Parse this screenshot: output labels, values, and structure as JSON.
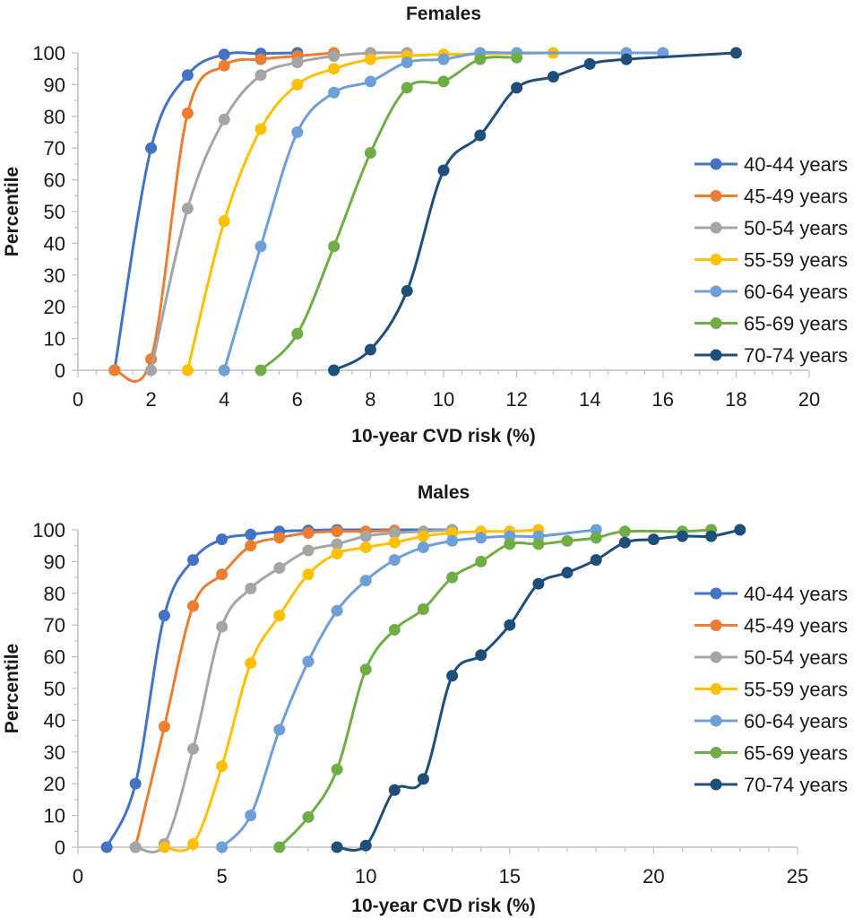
{
  "chart_data": [
    {
      "type": "line",
      "title": "Females",
      "xlabel": "10-year CVD risk (%)",
      "ylabel": "Percentile",
      "xlim": [
        0,
        20
      ],
      "ylim": [
        0,
        100
      ],
      "xticks": [
        0,
        2,
        4,
        6,
        8,
        10,
        12,
        14,
        16,
        18,
        20
      ],
      "yticks": [
        0,
        10,
        20,
        30,
        40,
        50,
        60,
        70,
        80,
        90,
        100
      ],
      "grid": false,
      "legend_position": "right",
      "series": [
        {
          "name": "40-44 years",
          "color": "#4472c4",
          "points": [
            [
              1,
              0
            ],
            [
              2,
              70
            ],
            [
              3,
              93
            ],
            [
              4,
              99.5
            ],
            [
              5,
              99.8
            ],
            [
              6,
              100
            ]
          ]
        },
        {
          "name": "45-49 years",
          "color": "#ed7d31",
          "points": [
            [
              1,
              0
            ],
            [
              2,
              3.5
            ],
            [
              3,
              81
            ],
            [
              4,
              96
            ],
            [
              5,
              98
            ],
            [
              6,
              99
            ],
            [
              7,
              100
            ]
          ]
        },
        {
          "name": "50-54 years",
          "color": "#a5a5a5",
          "points": [
            [
              2,
              0
            ],
            [
              3,
              51
            ],
            [
              4,
              79
            ],
            [
              5,
              93
            ],
            [
              6,
              97
            ],
            [
              7,
              99
            ],
            [
              8,
              100
            ],
            [
              9,
              100
            ]
          ]
        },
        {
          "name": "55-59 years",
          "color": "#ffc000",
          "points": [
            [
              3,
              0
            ],
            [
              4,
              47
            ],
            [
              5,
              76
            ],
            [
              6,
              90
            ],
            [
              7,
              95
            ],
            [
              8,
              98
            ],
            [
              9,
              99
            ],
            [
              10,
              99.5
            ],
            [
              13,
              100
            ]
          ]
        },
        {
          "name": "60-64 years",
          "color": "#6f9fd8",
          "points": [
            [
              4,
              0
            ],
            [
              5,
              39
            ],
            [
              6,
              75
            ],
            [
              7,
              87.5
            ],
            [
              8,
              91
            ],
            [
              9,
              97
            ],
            [
              10,
              98
            ],
            [
              11,
              100
            ],
            [
              12,
              100
            ],
            [
              15,
              100
            ],
            [
              16,
              100
            ]
          ]
        },
        {
          "name": "65-69 years",
          "color": "#70ad47",
          "points": [
            [
              5,
              0
            ],
            [
              6,
              11.5
            ],
            [
              7,
              39
            ],
            [
              8,
              68.5
            ],
            [
              9,
              89
            ],
            [
              10,
              91
            ],
            [
              11,
              98
            ],
            [
              12,
              98.5
            ]
          ]
        },
        {
          "name": "70-74 years",
          "color": "#1f4e79",
          "points": [
            [
              7,
              0
            ],
            [
              8,
              6.5
            ],
            [
              9,
              25
            ],
            [
              10,
              63
            ],
            [
              11,
              74
            ],
            [
              12,
              89
            ],
            [
              13,
              92.5
            ],
            [
              14,
              96.5
            ],
            [
              15,
              98
            ],
            [
              18,
              100
            ]
          ]
        }
      ]
    },
    {
      "type": "line",
      "title": "Males",
      "xlabel": "10-year CVD risk (%)",
      "ylabel": "Percentile",
      "xlim": [
        0,
        25
      ],
      "ylim": [
        0,
        100
      ],
      "xticks": [
        0,
        5,
        10,
        15,
        20,
        25
      ],
      "yticks": [
        0,
        10,
        20,
        30,
        40,
        50,
        60,
        70,
        80,
        90,
        100
      ],
      "grid": false,
      "legend_position": "right",
      "series": [
        {
          "name": "40-44 years",
          "color": "#4472c4",
          "points": [
            [
              1,
              0
            ],
            [
              2,
              20
            ],
            [
              3,
              73
            ],
            [
              4,
              90.5
            ],
            [
              5,
              97
            ],
            [
              6,
              98.5
            ],
            [
              7,
              99.5
            ],
            [
              8,
              99.8
            ],
            [
              9,
              100
            ],
            [
              13,
              100
            ]
          ]
        },
        {
          "name": "45-49 years",
          "color": "#ed7d31",
          "points": [
            [
              2,
              0
            ],
            [
              3,
              38
            ],
            [
              4,
              76
            ],
            [
              5,
              86
            ],
            [
              6,
              95
            ],
            [
              7,
              97.5
            ],
            [
              8,
              99
            ],
            [
              9,
              99.5
            ],
            [
              10,
              99.5
            ],
            [
              11,
              99.8
            ]
          ]
        },
        {
          "name": "50-54 years",
          "color": "#a5a5a5",
          "points": [
            [
              2,
              0
            ],
            [
              3,
              1
            ],
            [
              4,
              31
            ],
            [
              5,
              69.5
            ],
            [
              6,
              81.5
            ],
            [
              7,
              88
            ],
            [
              8,
              93.5
            ],
            [
              9,
              95.5
            ],
            [
              10,
              98
            ],
            [
              11,
              99
            ],
            [
              12,
              99.5
            ],
            [
              13,
              100
            ]
          ]
        },
        {
          "name": "55-59 years",
          "color": "#ffc000",
          "points": [
            [
              3,
              0
            ],
            [
              4,
              1
            ],
            [
              5,
              25.5
            ],
            [
              6,
              58
            ],
            [
              7,
              73
            ],
            [
              8,
              86
            ],
            [
              9,
              92.5
            ],
            [
              10,
              94.5
            ],
            [
              11,
              96
            ],
            [
              12,
              98
            ],
            [
              13,
              99
            ],
            [
              14,
              99.5
            ],
            [
              15,
              99.5
            ],
            [
              16,
              100
            ]
          ]
        },
        {
          "name": "60-64 years",
          "color": "#6f9fd8",
          "points": [
            [
              5,
              0
            ],
            [
              6,
              10
            ],
            [
              7,
              37
            ],
            [
              8,
              58.5
            ],
            [
              9,
              74.5
            ],
            [
              10,
              84
            ],
            [
              11,
              90.5
            ],
            [
              12,
              94.5
            ],
            [
              13,
              96.5
            ],
            [
              14,
              97.5
            ],
            [
              15,
              98
            ],
            [
              16,
              98
            ],
            [
              18,
              100
            ]
          ]
        },
        {
          "name": "65-69 years",
          "color": "#70ad47",
          "points": [
            [
              7,
              0
            ],
            [
              8,
              9.5
            ],
            [
              9,
              24.5
            ],
            [
              10,
              56
            ],
            [
              11,
              68.5
            ],
            [
              12,
              75
            ],
            [
              13,
              85
            ],
            [
              14,
              90
            ],
            [
              15,
              95.5
            ],
            [
              16,
              95.5
            ],
            [
              17,
              96.5
            ],
            [
              18,
              97.5
            ],
            [
              19,
              99.5
            ],
            [
              21,
              99.5
            ],
            [
              22,
              100
            ]
          ]
        },
        {
          "name": "70-74 years",
          "color": "#1f4e79",
          "points": [
            [
              9,
              0
            ],
            [
              10,
              0.5
            ],
            [
              11,
              18
            ],
            [
              12,
              21.5
            ],
            [
              13,
              54
            ],
            [
              14,
              60.5
            ],
            [
              15,
              70
            ],
            [
              16,
              83
            ],
            [
              17,
              86.5
            ],
            [
              18,
              90.5
            ],
            [
              19,
              96
            ],
            [
              20,
              97
            ],
            [
              21,
              98
            ],
            [
              22,
              98
            ],
            [
              23,
              100
            ]
          ]
        }
      ]
    }
  ]
}
